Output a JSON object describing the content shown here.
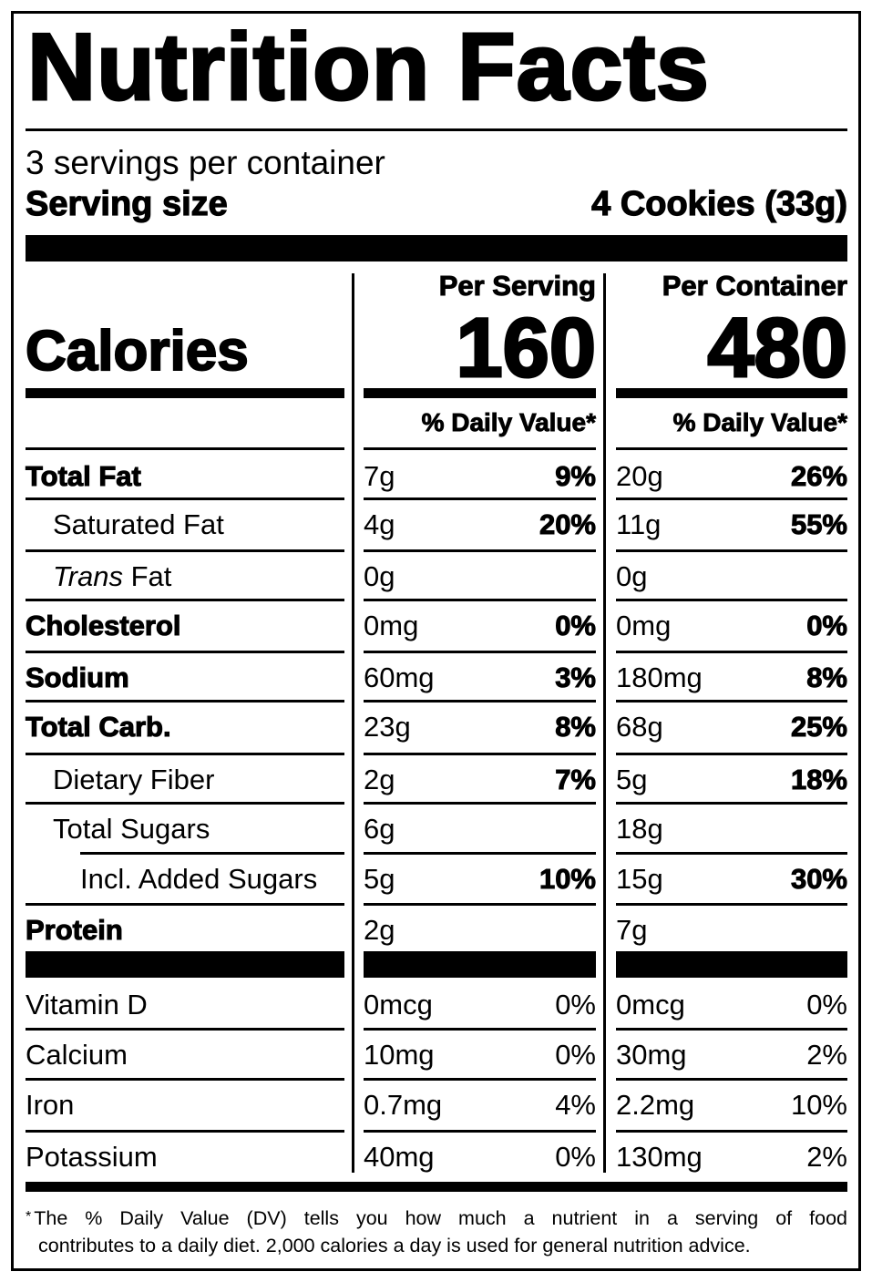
{
  "title": "Nutrition Facts",
  "servings_per_container": "3 servings per container",
  "serving_size": {
    "label": "Serving size",
    "value": "4 Cookies (33g)"
  },
  "columns": {
    "per_serving": {
      "header": "Per Serving",
      "calories": "160",
      "dv_header": "% Daily Value*"
    },
    "per_container": {
      "header": "Per Container",
      "calories": "480",
      "dv_header": "% Daily Value*"
    }
  },
  "calories_label": "Calories",
  "nutrients": [
    {
      "name": "Total Fat",
      "style": "bold",
      "indent": 0,
      "serving_amount": "7g",
      "serving_dv": "9%",
      "container_amount": "20g",
      "container_dv": "26%"
    },
    {
      "name": "Saturated Fat",
      "style": "normal",
      "indent": 1,
      "serving_amount": "4g",
      "serving_dv": "20%",
      "container_amount": "11g",
      "container_dv": "55%"
    },
    {
      "name_italic": "Trans",
      "name": " Fat",
      "style": "normal",
      "indent": 1,
      "serving_amount": "0g",
      "serving_dv": "",
      "container_amount": "0g",
      "container_dv": ""
    },
    {
      "name": "Cholesterol",
      "style": "bold",
      "indent": 0,
      "serving_amount": "0mg",
      "serving_dv": "0%",
      "container_amount": "0mg",
      "container_dv": "0%"
    },
    {
      "name": "Sodium",
      "style": "bold",
      "indent": 0,
      "serving_amount": "60mg",
      "serving_dv": "3%",
      "container_amount": "180mg",
      "container_dv": "8%"
    },
    {
      "name": "Total Carb.",
      "style": "bold",
      "indent": 0,
      "serving_amount": "23g",
      "serving_dv": "8%",
      "container_amount": "68g",
      "container_dv": "25%"
    },
    {
      "name": "Dietary Fiber",
      "style": "normal",
      "indent": 1,
      "serving_amount": "2g",
      "serving_dv": "7%",
      "container_amount": "5g",
      "container_dv": "18%"
    },
    {
      "name": "Total Sugars",
      "style": "normal",
      "indent": 1,
      "serving_amount": "6g",
      "serving_dv": "",
      "container_amount": "18g",
      "container_dv": ""
    },
    {
      "name": "Incl. Added Sugars",
      "style": "normal",
      "indent": 2,
      "serving_amount": "5g",
      "serving_dv": "10%",
      "container_amount": "15g",
      "container_dv": "30%"
    },
    {
      "name": "Protein",
      "style": "bold",
      "indent": 0,
      "serving_amount": "2g",
      "serving_dv": "",
      "container_amount": "7g",
      "container_dv": ""
    }
  ],
  "vitamins": [
    {
      "name": "Vitamin D",
      "serving_amount": "0mcg",
      "serving_dv": "0%",
      "container_amount": "0mcg",
      "container_dv": "0%"
    },
    {
      "name": "Calcium",
      "serving_amount": "10mg",
      "serving_dv": "0%",
      "container_amount": "30mg",
      "container_dv": "2%"
    },
    {
      "name": "Iron",
      "serving_amount": "0.7mg",
      "serving_dv": "4%",
      "container_amount": "2.2mg",
      "container_dv": "10%"
    },
    {
      "name": "Potassium",
      "serving_amount": "40mg",
      "serving_dv": "0%",
      "container_amount": "130mg",
      "container_dv": "2%"
    }
  ],
  "footnote": {
    "asterisk": "*",
    "line1": "The % Daily Value (DV) tells you how much a nutrient in a serving of food",
    "line2": "contributes to a daily diet. 2,000 calories a day is used for general nutrition advice."
  },
  "colors": {
    "ink": "#000000",
    "background": "#ffffff"
  }
}
